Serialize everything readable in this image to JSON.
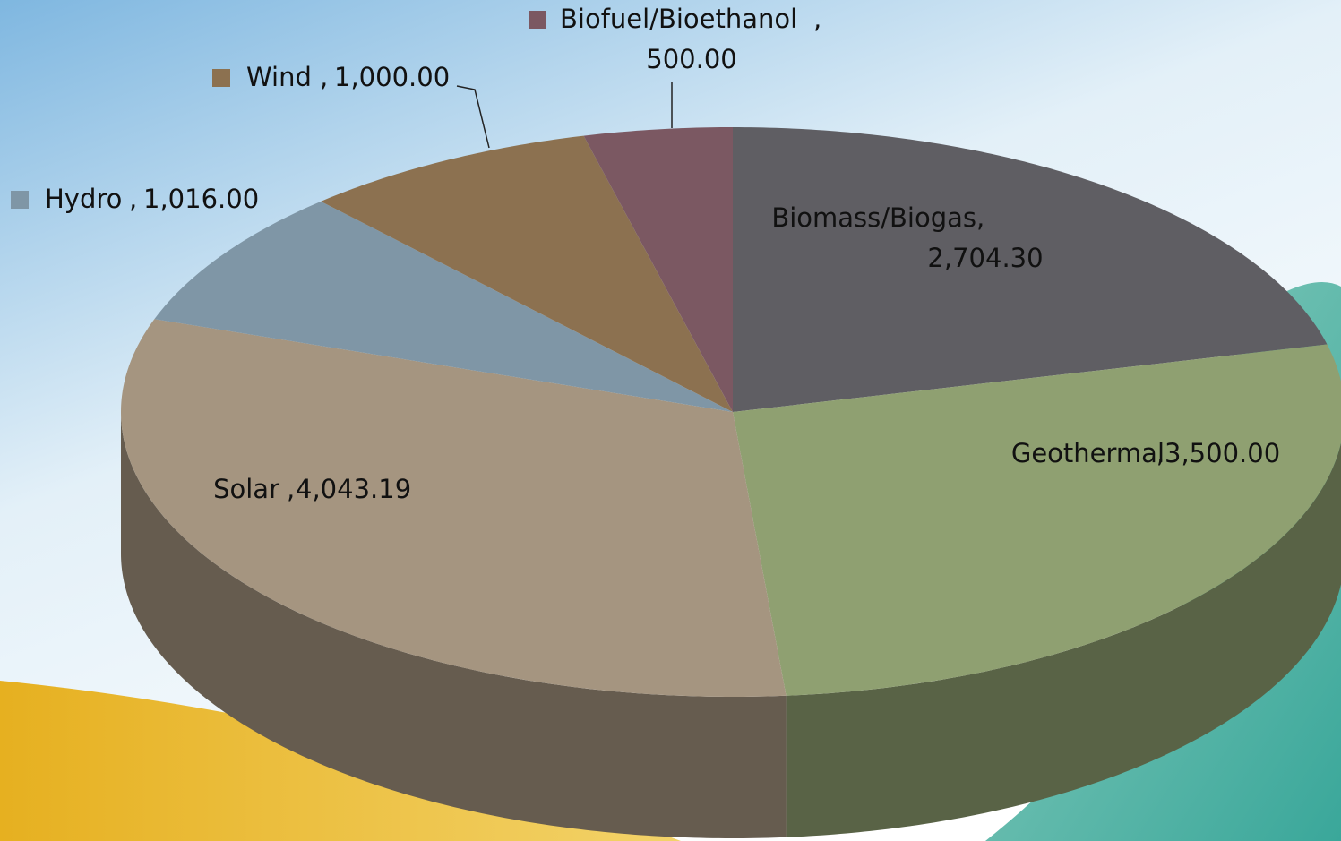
{
  "chart_data": {
    "type": "pie3d",
    "categories": [
      "Biomass/Biogas",
      "Geothermal",
      "Solar",
      "Hydro",
      "Wind",
      "Biofuel/Bioethanol"
    ],
    "values": [
      2704.3,
      3500.0,
      4043.19,
      1016.0,
      1000.0,
      500.0
    ],
    "value_labels": [
      "2,704.30",
      "3,500.00",
      "4,043.19",
      "1,016.00",
      "1,000.00",
      "500.00"
    ],
    "colors": [
      "#5f5e63",
      "#8fa071",
      "#a59580",
      "#7f96a6",
      "#8c7150",
      "#7b5862"
    ]
  }
}
